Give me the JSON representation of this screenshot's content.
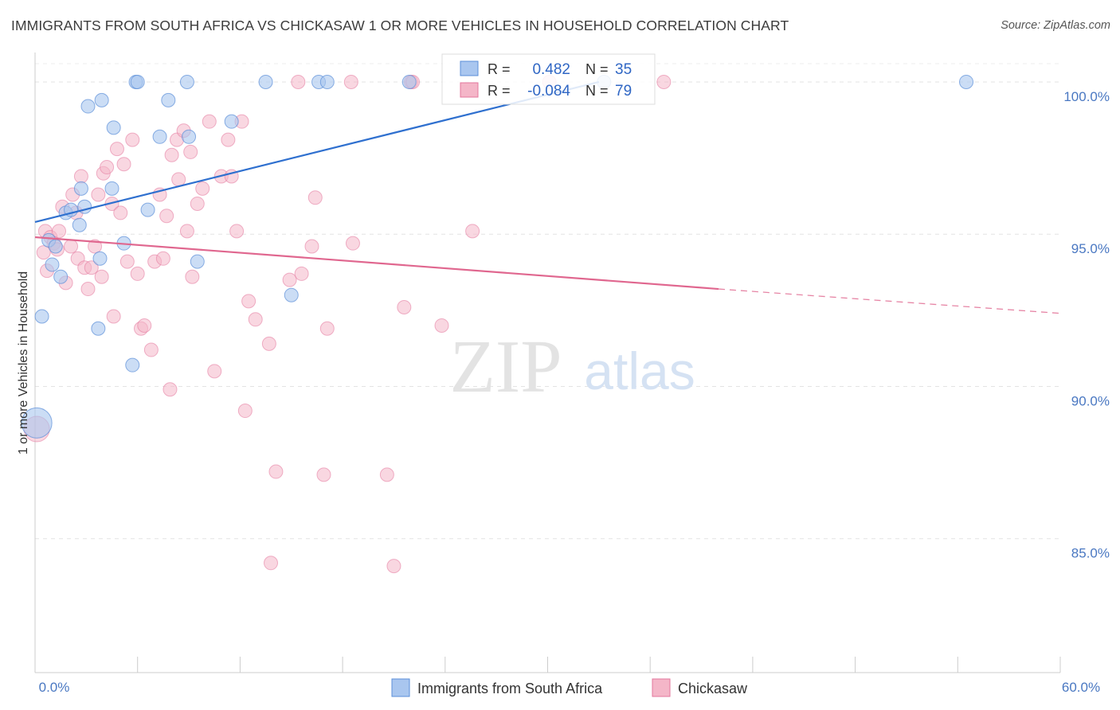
{
  "header": {
    "title": "IMMIGRANTS FROM SOUTH AFRICA VS CHICKASAW 1 OR MORE VEHICLES IN HOUSEHOLD CORRELATION CHART",
    "source": "Source: ZipAtlas.com"
  },
  "watermark": {
    "zip": "ZIP",
    "atlas": "atlas"
  },
  "stats_box": {
    "rows": [
      {
        "r_label": "R =",
        "r_value": "0.482",
        "n_label": "N =",
        "n_value": "35",
        "color": "#a9c6ef"
      },
      {
        "r_label": "R =",
        "r_value": "-0.084",
        "n_label": "N =",
        "n_value": "79",
        "color": "#f4b6c8"
      }
    ]
  },
  "legend": {
    "items": [
      {
        "label": "Immigrants from South Africa",
        "color": "#a9c6ef"
      },
      {
        "label": "Chickasaw",
        "color": "#f4b6c8"
      }
    ]
  },
  "chart_data": {
    "type": "scatter",
    "title": "IMMIGRANTS FROM SOUTH AFRICA VS CHICKASAW 1 OR MORE VEHICLES IN HOUSEHOLD CORRELATION CHART",
    "xlabel": "",
    "ylabel": "1 or more Vehicles in Household",
    "xlim": [
      0,
      60
    ],
    "ylim": [
      80.6,
      100.6
    ],
    "x_tick_labels": [
      "0.0%",
      "60.0%"
    ],
    "y_ticks": [
      85,
      90,
      95,
      100
    ],
    "y_tick_labels": [
      "85.0%",
      "90.0%",
      "95.0%",
      "100.0%"
    ],
    "grid": true,
    "legend_position": "bottom",
    "series": [
      {
        "name": "Immigrants from South Africa",
        "color": "#5b8fd8",
        "fill": "#a9c6ef",
        "points": [
          [
            0.1,
            88.8
          ],
          [
            0.4,
            92.3
          ],
          [
            0.8,
            94.8
          ],
          [
            1.0,
            94.0
          ],
          [
            1.2,
            94.6
          ],
          [
            1.5,
            93.6
          ],
          [
            1.8,
            95.7
          ],
          [
            2.1,
            95.8
          ],
          [
            2.6,
            95.3
          ],
          [
            2.9,
            95.9
          ],
          [
            2.7,
            96.5
          ],
          [
            3.1,
            99.2
          ],
          [
            3.7,
            91.9
          ],
          [
            3.8,
            94.2
          ],
          [
            3.9,
            99.4
          ],
          [
            4.5,
            96.5
          ],
          [
            4.6,
            98.5
          ],
          [
            5.2,
            94.7
          ],
          [
            5.7,
            90.7
          ],
          [
            5.9,
            100.0
          ],
          [
            6.0,
            100.0
          ],
          [
            6.6,
            95.8
          ],
          [
            7.3,
            98.2
          ],
          [
            7.8,
            99.4
          ],
          [
            8.9,
            100.0
          ],
          [
            9.0,
            98.2
          ],
          [
            9.5,
            94.1
          ],
          [
            11.5,
            98.7
          ],
          [
            13.5,
            100.0
          ],
          [
            15.0,
            93.0
          ],
          [
            16.6,
            100.0
          ],
          [
            17.1,
            100.0
          ],
          [
            21.9,
            100.0
          ],
          [
            33.3,
            100.0
          ],
          [
            54.5,
            100.0
          ]
        ],
        "trend": {
          "x": [
            0,
            33
          ],
          "y": [
            95.4,
            100.0
          ]
        }
      },
      {
        "name": "Chickasaw",
        "color": "#e3779c",
        "fill": "#f4b6c8",
        "points": [
          [
            0.1,
            88.6
          ],
          [
            0.5,
            94.4
          ],
          [
            0.6,
            95.1
          ],
          [
            0.7,
            93.8
          ],
          [
            0.9,
            94.9
          ],
          [
            1.1,
            94.7
          ],
          [
            1.3,
            94.5
          ],
          [
            1.4,
            95.1
          ],
          [
            1.6,
            95.9
          ],
          [
            1.8,
            93.4
          ],
          [
            2.1,
            94.6
          ],
          [
            2.2,
            96.3
          ],
          [
            2.4,
            95.7
          ],
          [
            2.5,
            94.2
          ],
          [
            2.7,
            96.9
          ],
          [
            2.9,
            93.9
          ],
          [
            3.1,
            93.2
          ],
          [
            3.3,
            93.9
          ],
          [
            3.5,
            94.6
          ],
          [
            3.7,
            96.3
          ],
          [
            3.9,
            93.6
          ],
          [
            4.0,
            97.0
          ],
          [
            4.2,
            97.2
          ],
          [
            4.5,
            96.0
          ],
          [
            4.6,
            92.3
          ],
          [
            4.8,
            97.8
          ],
          [
            5.0,
            95.7
          ],
          [
            5.2,
            97.3
          ],
          [
            5.4,
            94.1
          ],
          [
            5.7,
            98.1
          ],
          [
            6.0,
            93.7
          ],
          [
            6.2,
            91.9
          ],
          [
            6.4,
            92.0
          ],
          [
            6.8,
            91.2
          ],
          [
            7.0,
            94.1
          ],
          [
            7.3,
            96.3
          ],
          [
            7.5,
            94.2
          ],
          [
            7.7,
            95.6
          ],
          [
            7.9,
            89.9
          ],
          [
            8.0,
            97.6
          ],
          [
            8.3,
            98.1
          ],
          [
            8.4,
            96.8
          ],
          [
            8.7,
            98.4
          ],
          [
            8.9,
            95.1
          ],
          [
            9.1,
            97.7
          ],
          [
            9.2,
            93.6
          ],
          [
            9.5,
            96.0
          ],
          [
            9.8,
            96.5
          ],
          [
            10.2,
            98.7
          ],
          [
            10.5,
            90.5
          ],
          [
            10.9,
            96.9
          ],
          [
            11.3,
            98.1
          ],
          [
            11.5,
            96.9
          ],
          [
            11.8,
            95.1
          ],
          [
            12.1,
            98.7
          ],
          [
            12.3,
            89.2
          ],
          [
            12.5,
            92.8
          ],
          [
            12.9,
            92.2
          ],
          [
            13.7,
            91.4
          ],
          [
            13.8,
            84.2
          ],
          [
            14.1,
            87.2
          ],
          [
            14.9,
            93.5
          ],
          [
            15.4,
            100.0
          ],
          [
            15.6,
            93.7
          ],
          [
            16.2,
            94.6
          ],
          [
            16.4,
            96.2
          ],
          [
            16.9,
            87.1
          ],
          [
            17.1,
            91.9
          ],
          [
            18.5,
            100.0
          ],
          [
            18.6,
            94.7
          ],
          [
            20.6,
            87.1
          ],
          [
            21.0,
            84.1
          ],
          [
            21.6,
            92.6
          ],
          [
            22.0,
            100.0
          ],
          [
            22.1,
            100.0
          ],
          [
            23.8,
            92.0
          ],
          [
            25.6,
            95.1
          ],
          [
            30.1,
            100.0
          ],
          [
            36.8,
            100.0
          ]
        ],
        "trend": {
          "x": [
            0,
            40
          ],
          "y": [
            94.9,
            93.2
          ]
        },
        "trend_dashed": {
          "x": [
            40,
            60
          ],
          "y": [
            93.2,
            92.4
          ]
        }
      }
    ]
  }
}
